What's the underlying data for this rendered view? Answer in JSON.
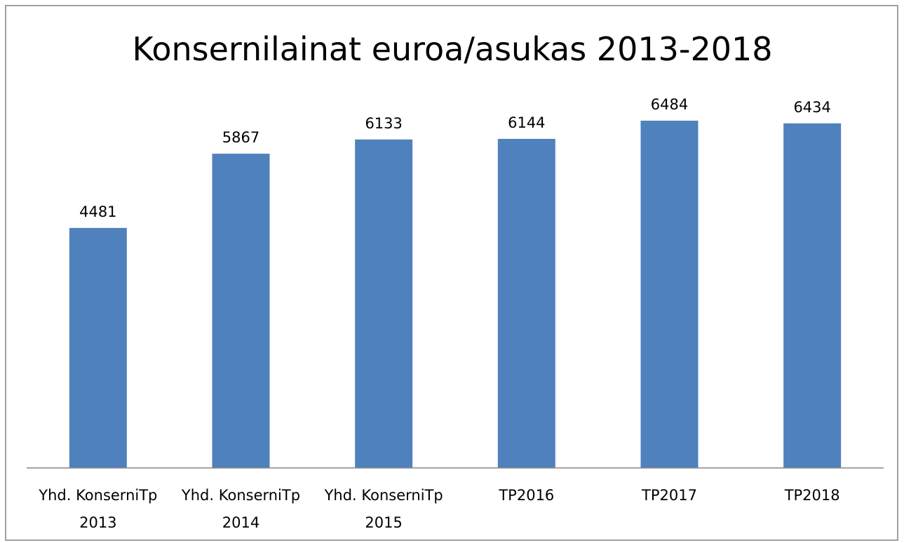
{
  "chart_data": {
    "type": "bar",
    "title": "Konsernilainat euroa/asukas 2013-2018",
    "categories": [
      "Yhd. KonserniTp 2013",
      "Yhd. KonserniTp 2014",
      "Yhd. KonserniTp 2015",
      "TP2016",
      "TP2017",
      "TP2018"
    ],
    "values": [
      4481,
      5867,
      6133,
      6144,
      6484,
      6434
    ],
    "color": "#4f81bd"
  }
}
